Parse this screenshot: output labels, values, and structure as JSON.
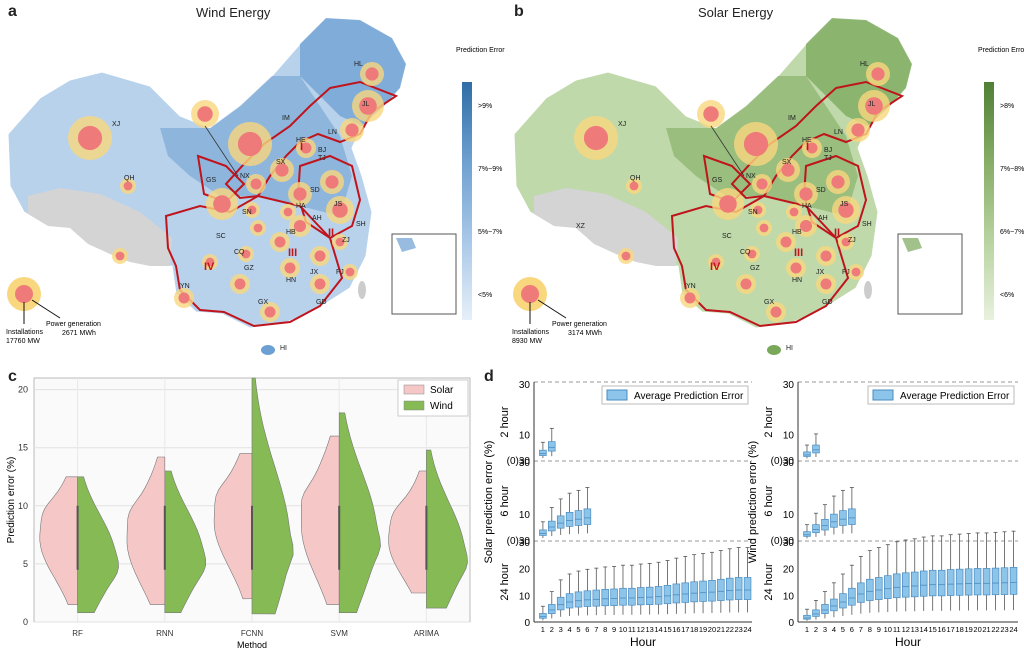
{
  "panels": {
    "a": {
      "letter": "a",
      "title": "Wind Energy",
      "legend": {
        "title": "Prediction Error",
        "levels": [
          ">9%",
          "7%~9%",
          "5%~7%",
          "<5%"
        ],
        "colors": [
          "#2f6ea6",
          "#6ea0d0",
          "#a9c8e8",
          "#e6eff9"
        ]
      },
      "key": {
        "installations_label": "Installations",
        "installations_value": "17760 MW",
        "generation_label": "Power generation",
        "generation_value": "2671 MWh"
      },
      "regions": [
        "I",
        "II",
        "III",
        "IV"
      ],
      "provinces": [
        "HL",
        "XJ",
        "IM",
        "JL",
        "LN",
        "HE",
        "BJ",
        "TJ",
        "SX",
        "NX",
        "GS",
        "QH",
        "SN",
        "SD",
        "HA",
        "JS",
        "AH",
        "HB",
        "SH",
        "SC",
        "CQ",
        "ZJ",
        "GZ",
        "JX",
        "YN",
        "HN",
        "FJ",
        "GX",
        "GD",
        "HI"
      ],
      "colors": {
        "base": "#b8d2ec",
        "dark": "#6c9fd2",
        "grey": "#d4d4d4",
        "border": "#c0141c"
      }
    },
    "b": {
      "letter": "b",
      "title": "Solar Energy",
      "legend": {
        "title": "Prediction Error",
        "levels": [
          ">8%",
          "7%~8%",
          "6%~7%",
          "<6%"
        ],
        "colors": [
          "#4f7f35",
          "#86ad66",
          "#b8d3a0",
          "#e8f1dd"
        ]
      },
      "key": {
        "installations_label": "Installations",
        "installations_value": "8930 MW",
        "generation_label": "Power generation",
        "generation_value": "3174 MWh"
      },
      "regions": [
        "I",
        "II",
        "III",
        "IV"
      ],
      "provinces": [
        "HL",
        "XJ",
        "IM",
        "JL",
        "LN",
        "HE",
        "BJ",
        "TJ",
        "SX",
        "NX",
        "GS",
        "QH",
        "XZ",
        "SN",
        "SD",
        "HA",
        "JS",
        "AH",
        "HB",
        "SH",
        "SC",
        "CQ",
        "ZJ",
        "GZ",
        "JX",
        "YN",
        "HN",
        "FJ",
        "GX",
        "GD",
        "HI"
      ],
      "colors": {
        "base": "#bfd9ab",
        "dark": "#7aa85a",
        "grey": "#d4d4d4",
        "border": "#c0141c"
      }
    },
    "c": {
      "letter": "c",
      "chart_data": {
        "type": "violin",
        "categories": [
          "RF",
          "RNN",
          "FCNN",
          "SVM",
          "ARIMA"
        ],
        "xlabel": "Method",
        "ylabel": "Prediction error (%)",
        "ylim": [
          0,
          21
        ],
        "yticks": [
          0,
          5,
          10,
          15,
          20
        ],
        "legend": [
          "Solar",
          "Wind"
        ],
        "legend_position": "top-right",
        "grid": true,
        "series": [
          {
            "name": "Solar",
            "color": "#f6c7c7",
            "ranges": [
              [
                1.5,
                12.5
              ],
              [
                1.5,
                14.2
              ],
              [
                2,
                14.5
              ],
              [
                1.5,
                16
              ],
              [
                2.5,
                13
              ]
            ],
            "medians": [
              7.2,
              7.0,
              8.6,
              8.3,
              7.0
            ]
          },
          {
            "name": "Wind",
            "color": "#86ba55",
            "ranges": [
              [
                0.8,
                12.5
              ],
              [
                0.8,
                13
              ],
              [
                0.7,
                21
              ],
              [
                0.8,
                18
              ],
              [
                1.2,
                14.8
              ]
            ],
            "medians": [
              5.5,
              5.8,
              7.0,
              7.5,
              6.0
            ]
          }
        ]
      }
    },
    "d": {
      "letter": "d",
      "chart_data": [
        {
          "type": "boxplot",
          "ylabel": "Solar prediction error (%)",
          "xlabel": "Hour",
          "legend": [
            "Average Prediction Error"
          ],
          "legend_position": "top-right",
          "rows": [
            {
              "label": "2 hour",
              "ticks": [
                "30",
                "10",
                "(0)30"
              ],
              "medians": [
                2.5,
                5.0
              ]
            },
            {
              "label": "6 hour",
              "ticks": [
                "30",
                "10",
                "(0)30"
              ],
              "medians": [
                2.5,
                5.0,
                6.5,
                7.5,
                8.0,
                8.5
              ]
            },
            {
              "label": "24 hour",
              "ticks": [
                "30",
                "20",
                "10",
                "0"
              ],
              "medians": [
                2.0,
                4.5,
                6.5,
                7.5,
                8.0,
                8.3,
                8.5,
                8.7,
                8.8,
                9.0,
                9.0,
                9.2,
                9.3,
                9.5,
                9.8,
                10.2,
                10.5,
                10.8,
                11.0,
                11.2,
                11.5,
                11.8,
                12.0,
                12.0
              ]
            }
          ],
          "hours": [
            "1",
            "2",
            "3",
            "4",
            "5",
            "6",
            "7",
            "8",
            "9",
            "10",
            "11",
            "12",
            "13",
            "14",
            "15",
            "16",
            "17",
            "18",
            "19",
            "20",
            "21",
            "22",
            "23",
            "24"
          ]
        },
        {
          "type": "boxplot",
          "ylabel": "Wind prediction error (%)",
          "xlabel": "Hour",
          "legend": [
            "Average Prediction Error"
          ],
          "legend_position": "top-right",
          "rows": [
            {
              "label": "2 hour",
              "ticks": [
                "30",
                "10",
                "(0)30"
              ],
              "medians": [
                2.0,
                4.0
              ]
            },
            {
              "label": "6 hour",
              "ticks": [
                "30",
                "10",
                "(0)30"
              ],
              "medians": [
                2.0,
                4.0,
                5.5,
                7.0,
                8.0,
                8.5
              ]
            },
            {
              "label": "24 hour",
              "ticks": [
                "30",
                "20",
                "10",
                "0"
              ],
              "medians": [
                1.5,
                3.0,
                4.5,
                6.0,
                7.5,
                9.0,
                10.5,
                11.5,
                12.0,
                12.5,
                13.0,
                13.3,
                13.5,
                13.8,
                14.0,
                14.0,
                14.2,
                14.3,
                14.4,
                14.5,
                14.5,
                14.6,
                14.7,
                14.8
              ]
            }
          ],
          "hours": [
            "1",
            "2",
            "3",
            "4",
            "5",
            "6",
            "7",
            "8",
            "9",
            "10",
            "11",
            "12",
            "13",
            "14",
            "15",
            "16",
            "17",
            "18",
            "19",
            "20",
            "21",
            "22",
            "23",
            "24"
          ]
        }
      ],
      "colors": {
        "box_fill": "#8cc4ea",
        "box_edge": "#4a8cc0"
      }
    }
  }
}
